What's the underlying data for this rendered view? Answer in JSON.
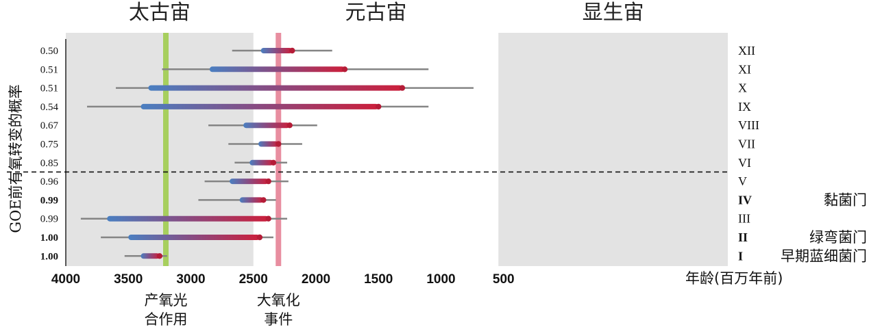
{
  "chart_data": {
    "type": "range",
    "ylabel": "GOE前有氧转变的概率",
    "xunit_label": "年龄(百万年前)",
    "x_ticks": [
      4000,
      3500,
      3000,
      2500,
      2000,
      1500,
      1000,
      500
    ],
    "x_reversed": true,
    "xlim": [
      4000,
      200
    ],
    "eons": [
      {
        "label": "太古宙",
        "start": 4000,
        "end": 2500,
        "shaded": true
      },
      {
        "label": "元古宙",
        "start": 2500,
        "end": 541,
        "shaded": false
      },
      {
        "label": "显生宙",
        "start": 541,
        "end": 0,
        "shaded": true
      }
    ],
    "events": [
      {
        "label_line1": "产氧光",
        "label_line2": "合作用",
        "age": 3200,
        "color": "#a7cf5e"
      },
      {
        "label_line1": "大氧化",
        "label_line2": "事件",
        "age": 2300,
        "color": "#e88ea0"
      }
    ],
    "threshold_after_row": 7,
    "rows": [
      {
        "id": "XII",
        "prob": "0.50",
        "bold": false,
        "phylum": "",
        "ci": [
          2670,
          1870
        ],
        "range": [
          2440,
          2190
        ]
      },
      {
        "id": "XI",
        "prob": "0.51",
        "bold": false,
        "phylum": "",
        "ci": [
          3230,
          1100
        ],
        "range": [
          2850,
          1770
        ]
      },
      {
        "id": "X",
        "prob": "0.51",
        "bold": false,
        "phylum": "",
        "ci": [
          3600,
          740
        ],
        "range": [
          3340,
          1310
        ]
      },
      {
        "id": "IX",
        "prob": "0.54",
        "bold": false,
        "phylum": "",
        "ci": [
          3830,
          1100
        ],
        "range": [
          3400,
          1500
        ]
      },
      {
        "id": "VIII",
        "prob": "0.67",
        "bold": false,
        "phylum": "",
        "ci": [
          2860,
          1990
        ],
        "range": [
          2580,
          2210
        ]
      },
      {
        "id": "VII",
        "prob": "0.75",
        "bold": false,
        "phylum": "",
        "ci": [
          2700,
          2110
        ],
        "range": [
          2460,
          2300
        ]
      },
      {
        "id": "VI",
        "prob": "0.85",
        "bold": false,
        "phylum": "",
        "ci": [
          2650,
          2230
        ],
        "range": [
          2530,
          2340
        ]
      },
      {
        "id": "V",
        "prob": "0.96",
        "bold": false,
        "phylum": "",
        "ci": [
          2890,
          2220
        ],
        "range": [
          2690,
          2380
        ]
      },
      {
        "id": "IV",
        "prob": "0.99",
        "bold": true,
        "phylum": "黏菌门",
        "ci": [
          2940,
          2320
        ],
        "range": [
          2610,
          2420
        ]
      },
      {
        "id": "III",
        "prob": "0.99",
        "bold": false,
        "phylum": "",
        "ci": [
          3880,
          2230
        ],
        "range": [
          3670,
          2380
        ]
      },
      {
        "id": "II",
        "prob": "1.00",
        "bold": true,
        "phylum": "绿弯菌门",
        "ci": [
          3720,
          2340
        ],
        "range": [
          3500,
          2450
        ]
      },
      {
        "id": "I",
        "prob": "1.00",
        "bold": true,
        "phylum": "早期蓝细菌门",
        "ci": [
          3530,
          3190
        ],
        "range": [
          3400,
          3250
        ]
      }
    ]
  }
}
